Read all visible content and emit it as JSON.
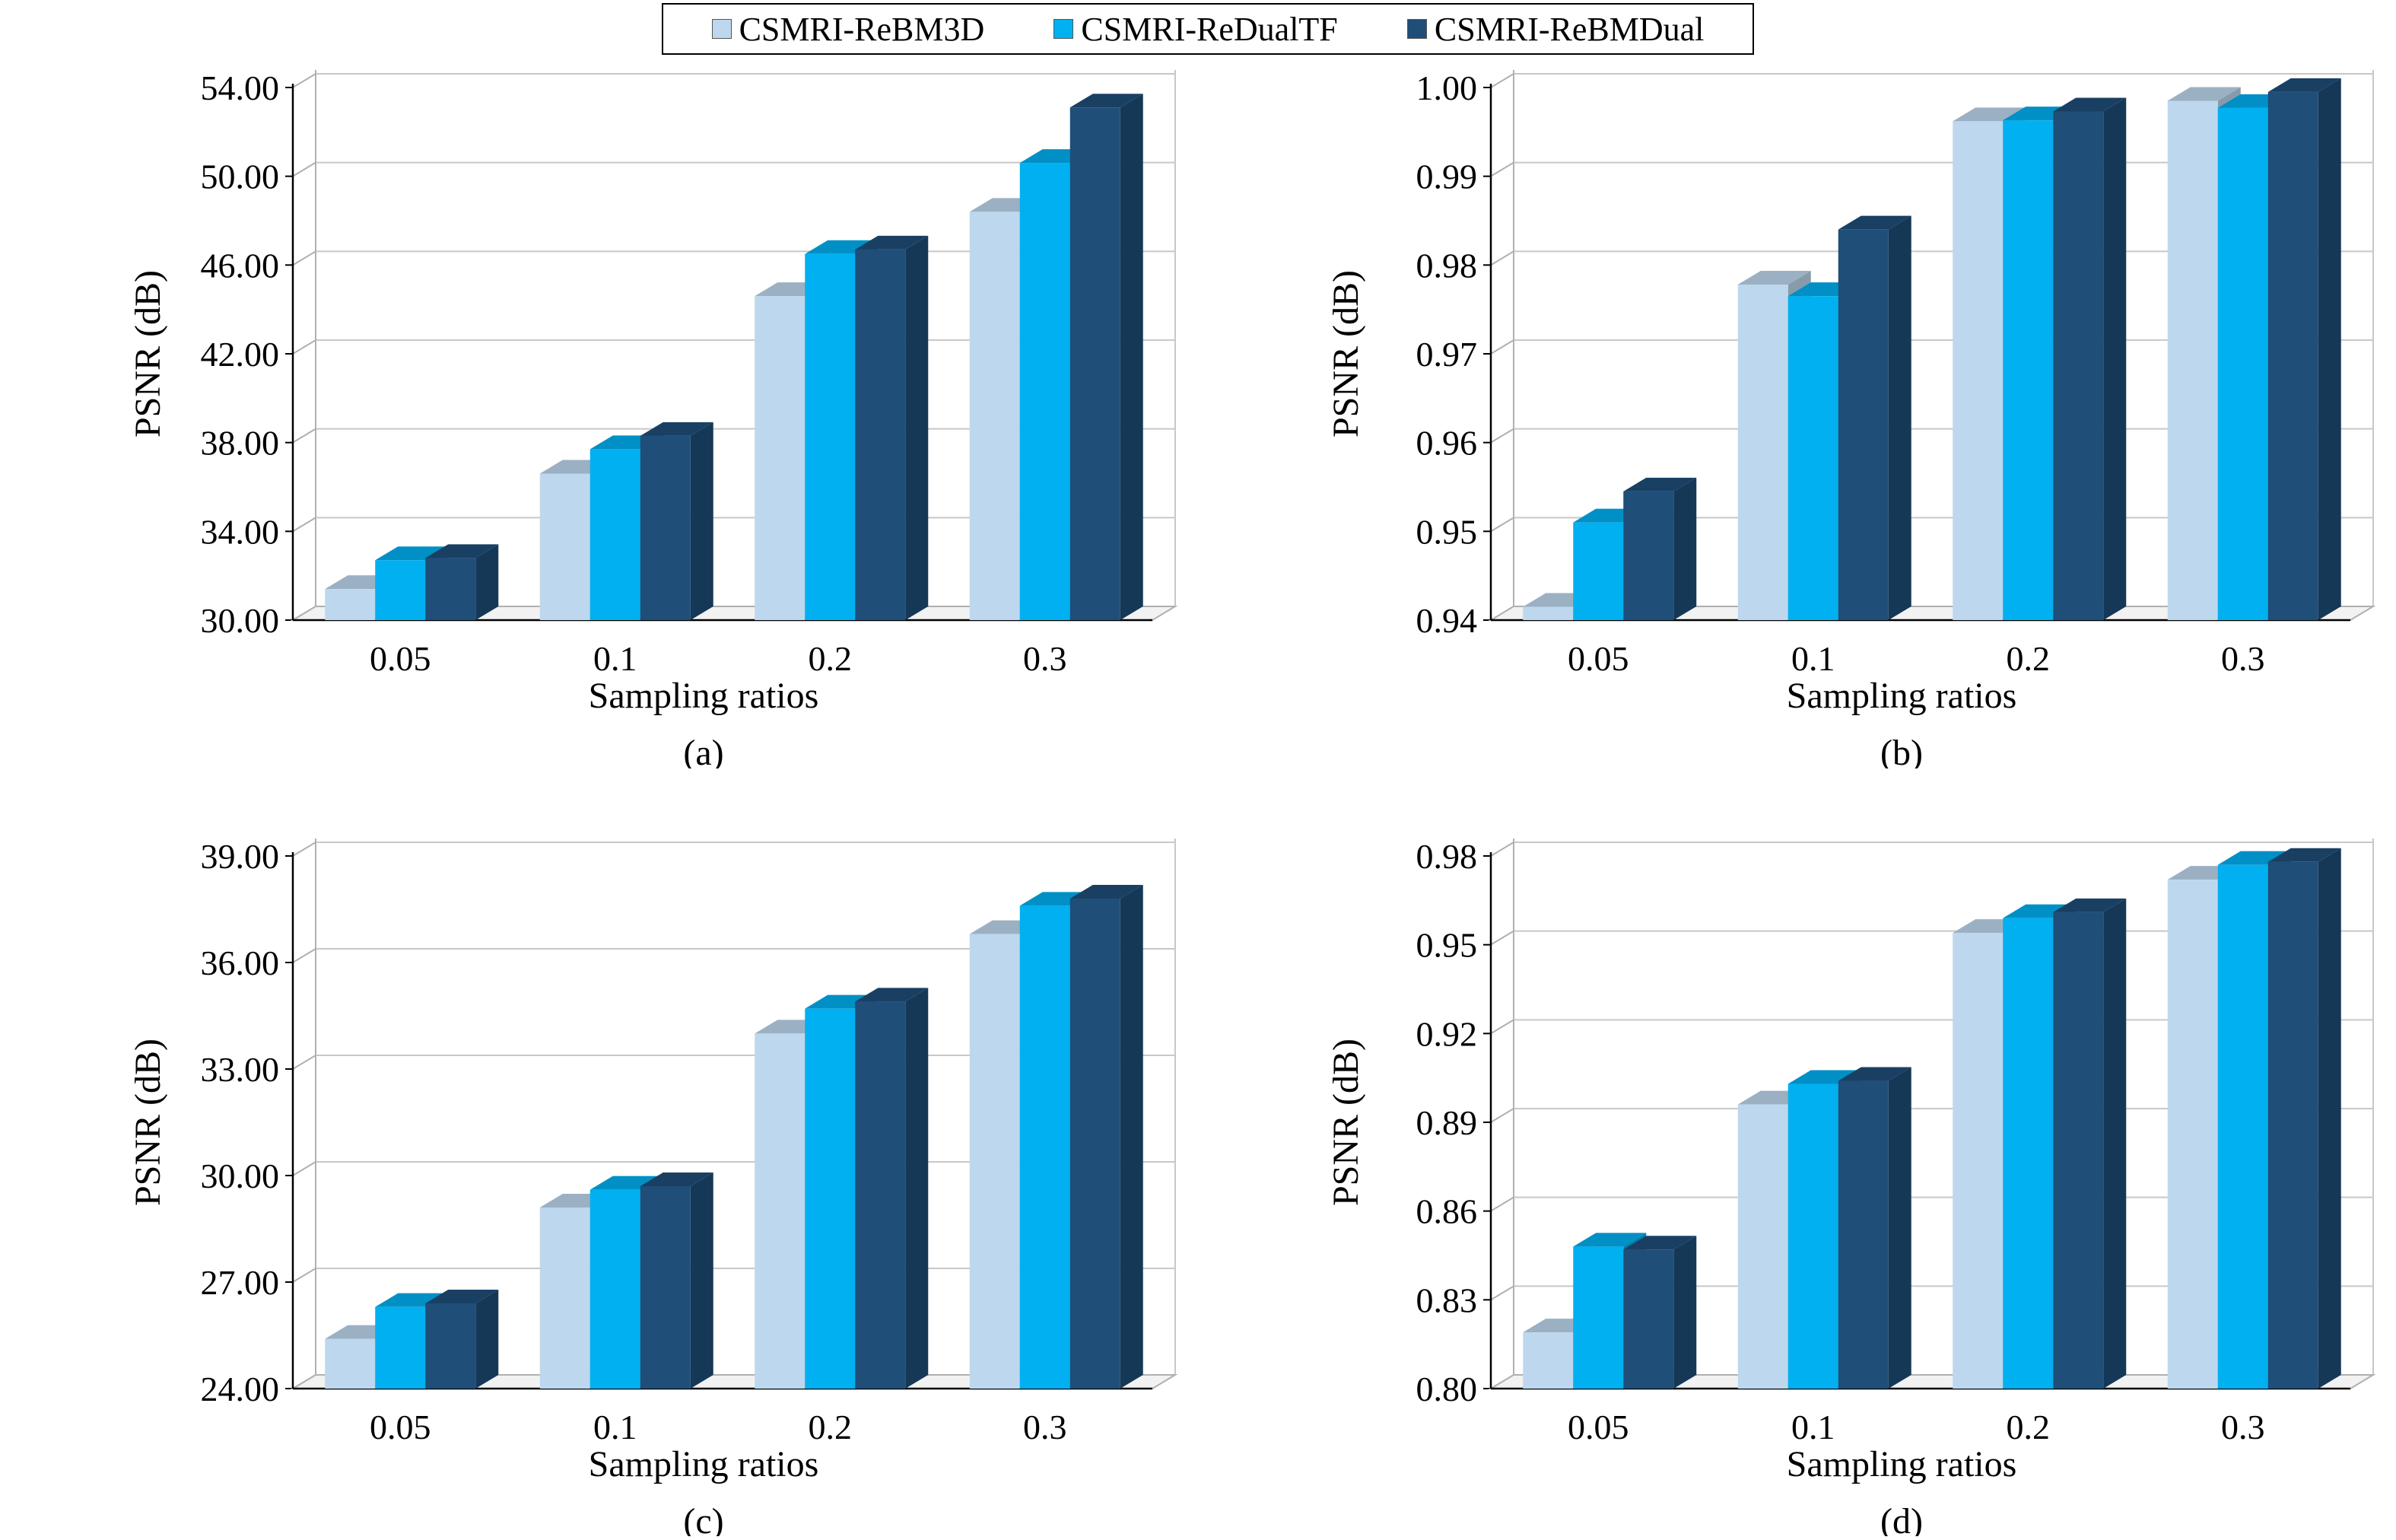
{
  "legend": {
    "items": [
      {
        "label": "CSMRI-ReBM3D",
        "color": "#bdd7ee"
      },
      {
        "label": "CSMRI-ReDualTF",
        "color": "#00b0f0"
      },
      {
        "label": "CSMRI-ReBMDual",
        "color": "#1f4e79"
      }
    ]
  },
  "chart_data": [
    {
      "type": "bar",
      "panel_label": "(a)",
      "categories": [
        "0.05",
        "0.1",
        "0.2",
        "0.3"
      ],
      "xlabel": "Sampling ratios",
      "ylabel": "PSNR (dB)",
      "ylim": [
        30,
        54
      ],
      "yticks": [
        "30.00",
        "34.00",
        "38.00",
        "42.00",
        "46.00",
        "50.00",
        "54.00"
      ],
      "ytick_values": [
        30,
        34,
        38,
        42,
        46,
        50,
        54
      ],
      "series": [
        {
          "name": "CSMRI-ReBM3D",
          "values": [
            31.4,
            36.6,
            44.6,
            48.4
          ]
        },
        {
          "name": "CSMRI-ReDualTF",
          "values": [
            32.7,
            37.7,
            46.5,
            50.6
          ]
        },
        {
          "name": "CSMRI-ReBMDual",
          "values": [
            32.8,
            38.3,
            46.7,
            53.1
          ]
        }
      ]
    },
    {
      "type": "bar",
      "panel_label": "(b)",
      "categories": [
        "0.05",
        "0.1",
        "0.2",
        "0.3"
      ],
      "xlabel": "Sampling ratios",
      "ylabel": "PSNR (dB)",
      "ylim": [
        0.94,
        1.0
      ],
      "yticks": [
        "0.94",
        "0.95",
        "0.96",
        "0.97",
        "0.98",
        "0.99",
        "1.00"
      ],
      "ytick_values": [
        0.94,
        0.95,
        0.96,
        0.97,
        0.98,
        0.99,
        1.0
      ],
      "series": [
        {
          "name": "CSMRI-ReBM3D",
          "values": [
            0.9415,
            0.9778,
            0.9962,
            0.9985
          ]
        },
        {
          "name": "CSMRI-ReDualTF",
          "values": [
            0.951,
            0.9765,
            0.9963,
            0.9977
          ]
        },
        {
          "name": "CSMRI-ReBMDual",
          "values": [
            0.9545,
            0.984,
            0.9973,
            0.9995
          ]
        }
      ]
    },
    {
      "type": "bar",
      "panel_label": "(c)",
      "categories": [
        "0.05",
        "0.1",
        "0.2",
        "0.3"
      ],
      "xlabel": "Sampling ratios",
      "ylabel": "PSNR (dB)",
      "ylim": [
        24,
        39
      ],
      "yticks": [
        "24.00",
        "27.00",
        "30.00",
        "33.00",
        "36.00",
        "39.00"
      ],
      "ytick_values": [
        24,
        27,
        30,
        33,
        36,
        39
      ],
      "series": [
        {
          "name": "CSMRI-ReBM3D",
          "values": [
            25.4,
            29.1,
            34.0,
            36.8
          ]
        },
        {
          "name": "CSMRI-ReDualTF",
          "values": [
            26.3,
            29.6,
            34.7,
            37.6
          ]
        },
        {
          "name": "CSMRI-ReBMDual",
          "values": [
            26.4,
            29.7,
            34.9,
            37.8
          ]
        }
      ]
    },
    {
      "type": "bar",
      "panel_label": "(d)",
      "categories": [
        "0.05",
        "0.1",
        "0.2",
        "0.3"
      ],
      "xlabel": "Sampling ratios",
      "ylabel": "PSNR (dB)",
      "ylim": [
        0.8,
        0.98
      ],
      "yticks": [
        "0.80",
        "0.83",
        "0.86",
        "0.89",
        "0.92",
        "0.95",
        "0.98"
      ],
      "ytick_values": [
        0.8,
        0.83,
        0.86,
        0.89,
        0.92,
        0.95,
        0.98
      ],
      "series": [
        {
          "name": "CSMRI-ReBM3D",
          "values": [
            0.819,
            0.896,
            0.954,
            0.972
          ]
        },
        {
          "name": "CSMRI-ReDualTF",
          "values": [
            0.848,
            0.903,
            0.959,
            0.977
          ]
        },
        {
          "name": "CSMRI-ReBMDual",
          "values": [
            0.847,
            0.904,
            0.961,
            0.978
          ]
        }
      ]
    }
  ]
}
